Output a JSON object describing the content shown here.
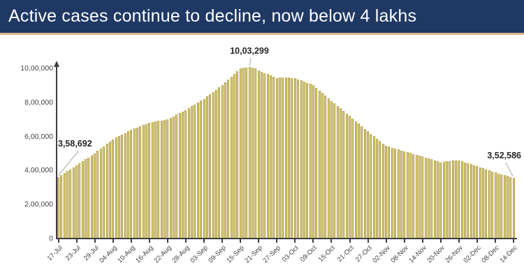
{
  "title_bar": {
    "title": "Active cases continue to decline, now below 4 lakhs"
  },
  "colors": {
    "title_bg": "#1f3864",
    "title_text": "#ffffff",
    "accent_line": "#ddb28c",
    "axis": "#3f3f3f",
    "bar_fill": "#e8dd9b",
    "bar_edge": "#a99433",
    "leader_line": "#b3b3b3"
  },
  "chart_data": {
    "type": "bar",
    "title": "Active cases continue to decline, now below 4 lakhs",
    "xlabel": "",
    "ylabel": "",
    "ylim": [
      0,
      1000000
    ],
    "grid": false,
    "legend": false,
    "x_start": "17-Jul",
    "x_end": "14-Dec",
    "x_tick_every": 6,
    "x_tick_labels": [
      "17-Jul",
      "23-Jul",
      "29-Jul",
      "04-Aug",
      "10-Aug",
      "16-Aug",
      "22-Aug",
      "28-Aug",
      "03-Sep",
      "09-Sep",
      "15-Sep",
      "21-Sep",
      "27-Sep",
      "03-Oct",
      "09-Oct",
      "15-Oct",
      "21-Oct",
      "27-Oct",
      "02-Nov",
      "08-Nov",
      "14-Nov",
      "20-Nov",
      "26-Nov",
      "02-Dec",
      "08-Dec",
      "14-Dec"
    ],
    "y_tick_labels": [
      "0",
      "2,00,000",
      "4,00,000",
      "6,00,000",
      "8,00,000",
      "10,00,000"
    ],
    "y_tick_values": [
      0,
      200000,
      400000,
      600000,
      800000,
      1000000
    ],
    "annotations": [
      {
        "id": "start",
        "label": "3,58,692",
        "index": 0,
        "value": 358692
      },
      {
        "id": "peak",
        "label": "10,03,299",
        "index": 63,
        "value": 1003299
      },
      {
        "id": "end",
        "label": "3,52,586",
        "index": 150,
        "value": 352586
      }
    ],
    "values": [
      358692,
      369900,
      381100,
      392300,
      403500,
      414800,
      426000,
      437800,
      449700,
      461500,
      473300,
      485200,
      497000,
      510800,
      524700,
      538500,
      552300,
      566200,
      580000,
      589200,
      598300,
      607500,
      616700,
      625800,
      635000,
      642000,
      649000,
      656000,
      663000,
      670000,
      677000,
      680300,
      683700,
      687000,
      690300,
      693700,
      697000,
      706200,
      715300,
      724500,
      733700,
      742800,
      752000,
      762800,
      773700,
      784500,
      795300,
      806200,
      817000,
      830300,
      843700,
      857000,
      870300,
      883700,
      897000,
      913300,
      929700,
      946000,
      962300,
      978700,
      995000,
      999000,
      1001500,
      1003299,
      1000500,
      995000,
      984000,
      976000,
      969000,
      962000,
      955000,
      947500,
      940000,
      941000,
      942000,
      943000,
      942000,
      940000,
      938000,
      931300,
      924700,
      918000,
      911300,
      904700,
      898000,
      882500,
      867000,
      851500,
      836000,
      820500,
      805000,
      790200,
      775300,
      760500,
      745700,
      730800,
      716000,
      701000,
      686000,
      671000,
      656000,
      641000,
      626000,
      611800,
      597700,
      583500,
      569300,
      555200,
      541000,
      535500,
      530000,
      524500,
      519000,
      513500,
      508000,
      503200,
      498300,
      493500,
      488700,
      483800,
      479000,
      473200,
      467300,
      461500,
      455700,
      449800,
      444000,
      446000,
      449000,
      452000,
      454000,
      455000,
      455000,
      449500,
      444000,
      438500,
      433000,
      427500,
      422000,
      415700,
      409300,
      403000,
      396700,
      390300,
      384000,
      378800,
      373500,
      368300,
      363000,
      357800,
      352586
    ]
  }
}
